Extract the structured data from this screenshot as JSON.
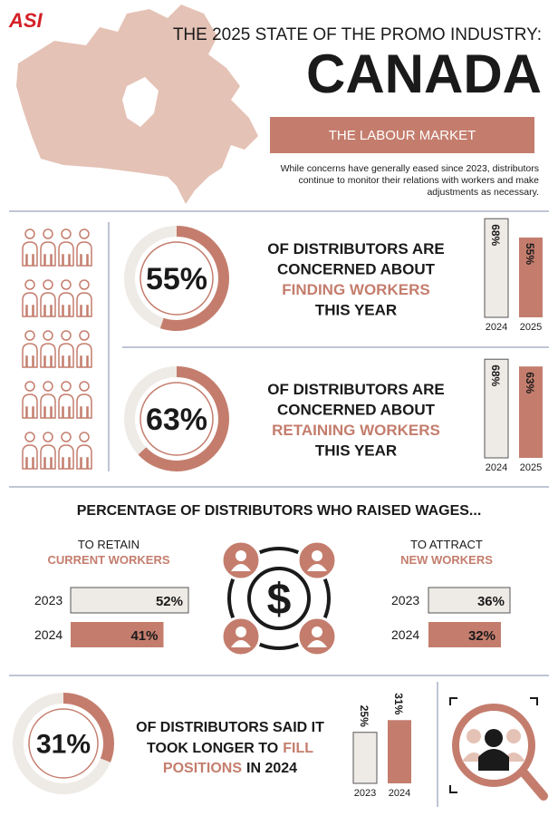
{
  "header": {
    "logo": "ASI",
    "title": "THE 2025 STATE OF THE PROMO INDUSTRY:",
    "country": "CANADA",
    "section": "THE LABOUR MARKET",
    "intro": "While concerns have generally eased since 2023, distributors continue to monitor their relations with workers and make adjustments as necessary."
  },
  "finding": {
    "value": 55,
    "label": "55%",
    "lead": [
      "OF DISTRIBUTORS ARE",
      "CONCERNED ABOUT"
    ],
    "highlight": "FINDING WORKERS",
    "tail": "THIS YEAR",
    "categories": [
      "2024",
      "2025"
    ],
    "values": [
      68,
      55
    ],
    "value_labels": [
      "68%",
      "55%"
    ]
  },
  "retaining": {
    "value": 63,
    "label": "63%",
    "lead": [
      "OF DISTRIBUTORS ARE",
      "CONCERNED ABOUT"
    ],
    "highlight": "RETAINING WORKERS",
    "tail": "THIS YEAR",
    "categories": [
      "2024",
      "2025"
    ],
    "values": [
      68,
      63
    ],
    "value_labels": [
      "68%",
      "63%"
    ]
  },
  "wages": {
    "title": "PERCENTAGE OF DISTRIBUTORS WHO RAISED WAGES...",
    "symbol": "$",
    "groups": [
      {
        "lead": "TO RETAIN",
        "highlight": "CURRENT WORKERS",
        "categories": [
          "2023",
          "2024"
        ],
        "values": [
          52,
          41
        ],
        "value_labels": [
          "52%",
          "41%"
        ]
      },
      {
        "lead": "TO ATTRACT",
        "highlight": "NEW WORKERS",
        "categories": [
          "2023",
          "2024"
        ],
        "values": [
          36,
          32
        ],
        "value_labels": [
          "36%",
          "32%"
        ]
      }
    ]
  },
  "positions": {
    "value": 31,
    "label": "31%",
    "line1": "OF DISTRIBUTORS SAID IT",
    "line2": "TOOK LONGER TO",
    "highlight1": "FILL",
    "highlight2": "POSITIONS",
    "line3": "IN 2024",
    "categories": [
      "2023",
      "2024"
    ],
    "values": [
      25,
      31
    ],
    "value_labels": [
      "25%",
      "31%"
    ]
  }
}
